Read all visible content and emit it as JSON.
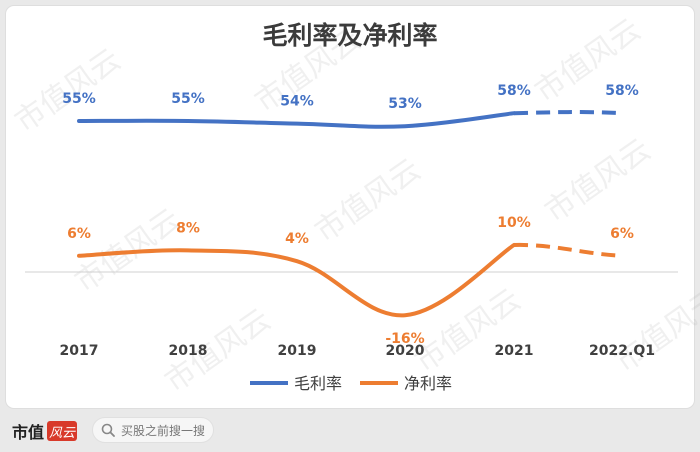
{
  "chart_data": {
    "type": "line",
    "title": "毛利率及净利率",
    "categories": [
      "2017",
      "2018",
      "2019",
      "2020",
      "2021",
      "2022.Q1"
    ],
    "series": [
      {
        "name": "毛利率",
        "color": "#4472c4",
        "values": [
          55,
          55,
          54,
          53,
          58,
          58
        ],
        "labels": [
          "55%",
          "55%",
          "54%",
          "53%",
          "58%",
          "58%"
        ],
        "dashed_last_segment": true
      },
      {
        "name": "净利率",
        "color": "#ed7d31",
        "values": [
          6,
          8,
          4,
          -16,
          10,
          6
        ],
        "labels": [
          "6%",
          "8%",
          "4%",
          "-16%",
          "10%",
          "6%"
        ],
        "dashed_last_segment": true
      }
    ],
    "legend_position": "bottom",
    "baseline": 0,
    "grid": false
  },
  "watermark": "市值风云",
  "footer": {
    "brand_text": "市值",
    "brand_badge": "风云",
    "search_placeholder": "买股之前搜一搜",
    "search_icon": "search-icon"
  }
}
